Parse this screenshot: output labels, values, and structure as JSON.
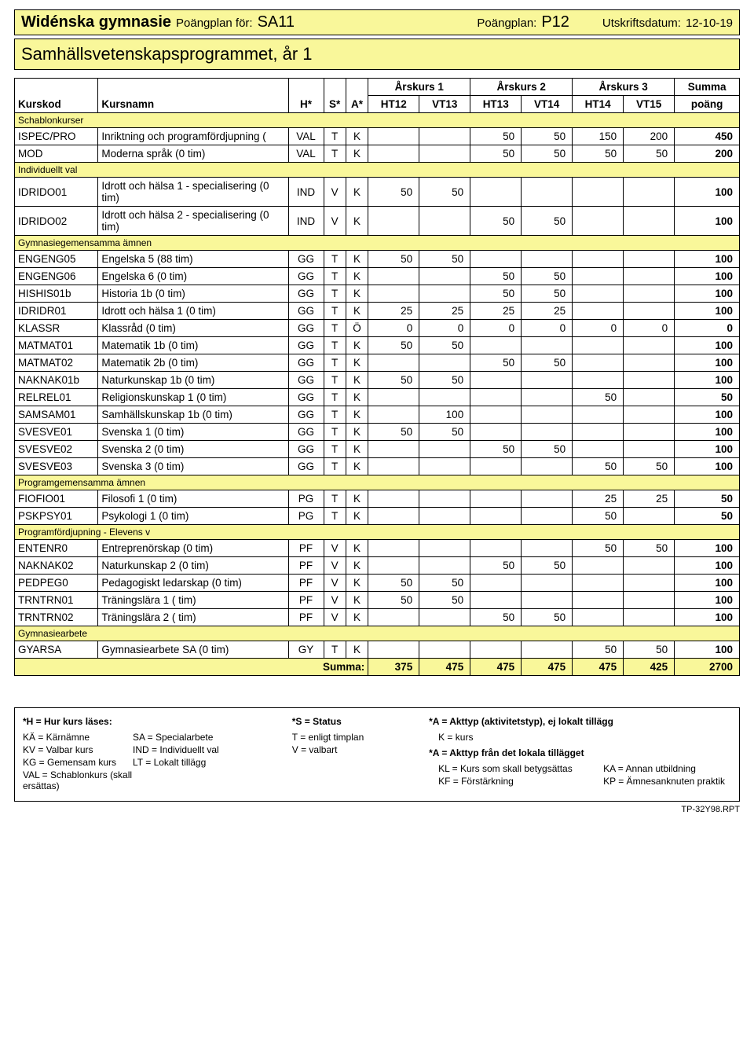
{
  "header": {
    "school": "Widénska gymnasie",
    "plan_for_label": "Poängplan för:",
    "plan_for_code": "SA11",
    "plan_label": "Poängplan:",
    "plan_code": "P12",
    "print_label": "Utskriftsdatum:",
    "print_date": "12-10-19",
    "program_title": "Samhällsvetenskapsprogrammet, år 1"
  },
  "columns": {
    "kurskod": "Kurskod",
    "kursnamn": "Kursnamn",
    "h": "H*",
    "s": "S*",
    "a": "A*",
    "arskurs1": "Årskurs 1",
    "arskurs2": "Årskurs 2",
    "arskurs3": "Årskurs 3",
    "ht12": "HT12",
    "vt13": "VT13",
    "ht13": "HT13",
    "vt14": "VT14",
    "ht14": "HT14",
    "vt15": "VT15",
    "summa": "Summa",
    "poang": "poäng"
  },
  "sections": [
    {
      "title": "Schablonkurser",
      "rows": [
        {
          "code": "ISPEC/PRO",
          "name": "Inriktning och programfördjupning (",
          "h": "VAL",
          "s": "T",
          "a": "K",
          "v": [
            "",
            "",
            "50",
            "50",
            "150",
            "200"
          ],
          "sum": "450"
        },
        {
          "code": "MOD",
          "name": "Moderna språk (0 tim)",
          "h": "VAL",
          "s": "T",
          "a": "K",
          "v": [
            "",
            "",
            "50",
            "50",
            "50",
            "50"
          ],
          "sum": "200"
        }
      ]
    },
    {
      "title": "Individuellt val",
      "rows": [
        {
          "code": "IDRIDO01",
          "name": "Idrott och hälsa 1 - specialisering (0 tim)",
          "small": true,
          "h": "IND",
          "s": "V",
          "a": "K",
          "v": [
            "50",
            "50",
            "",
            "",
            "",
            ""
          ],
          "sum": "100"
        },
        {
          "code": "IDRIDO02",
          "name": "Idrott och hälsa 2 - specialisering (0 tim)",
          "small": true,
          "h": "IND",
          "s": "V",
          "a": "K",
          "v": [
            "",
            "",
            "50",
            "50",
            "",
            ""
          ],
          "sum": "100"
        }
      ]
    },
    {
      "title": "Gymnasiegemensamma ämnen",
      "rows": [
        {
          "code": "ENGENG05",
          "name": "Engelska 5 (88 tim)",
          "h": "GG",
          "s": "T",
          "a": "K",
          "v": [
            "50",
            "50",
            "",
            "",
            "",
            ""
          ],
          "sum": "100"
        },
        {
          "code": "ENGENG06",
          "name": "Engelska 6 (0 tim)",
          "h": "GG",
          "s": "T",
          "a": "K",
          "v": [
            "",
            "",
            "50",
            "50",
            "",
            ""
          ],
          "sum": "100"
        },
        {
          "code": "HISHIS01b",
          "name": "Historia 1b (0 tim)",
          "h": "GG",
          "s": "T",
          "a": "K",
          "v": [
            "",
            "",
            "50",
            "50",
            "",
            ""
          ],
          "sum": "100"
        },
        {
          "code": "IDRIDR01",
          "name": "Idrott och hälsa 1 (0 tim)",
          "h": "GG",
          "s": "T",
          "a": "K",
          "v": [
            "25",
            "25",
            "25",
            "25",
            "",
            ""
          ],
          "sum": "100"
        },
        {
          "code": "KLASSR",
          "name": "Klassråd (0 tim)",
          "h": "GG",
          "s": "T",
          "a": "Ö",
          "v": [
            "0",
            "0",
            "0",
            "0",
            "0",
            "0"
          ],
          "sum": "0"
        },
        {
          "code": "MATMAT01",
          "name": "Matematik 1b (0 tim)",
          "h": "GG",
          "s": "T",
          "a": "K",
          "v": [
            "50",
            "50",
            "",
            "",
            "",
            ""
          ],
          "sum": "100"
        },
        {
          "code": "MATMAT02",
          "name": "Matematik 2b (0 tim)",
          "h": "GG",
          "s": "T",
          "a": "K",
          "v": [
            "",
            "",
            "50",
            "50",
            "",
            ""
          ],
          "sum": "100"
        },
        {
          "code": "NAKNAK01b",
          "name": "Naturkunskap 1b (0 tim)",
          "h": "GG",
          "s": "T",
          "a": "K",
          "v": [
            "50",
            "50",
            "",
            "",
            "",
            ""
          ],
          "sum": "100"
        },
        {
          "code": "RELREL01",
          "name": "Religionskunskap 1 (0 tim)",
          "h": "GG",
          "s": "T",
          "a": "K",
          "v": [
            "",
            "",
            "",
            "",
            "50",
            ""
          ],
          "sum": "50"
        },
        {
          "code": "SAMSAM01",
          "name": "Samhällskunskap 1b (0 tim)",
          "h": "GG",
          "s": "T",
          "a": "K",
          "v": [
            "",
            "100",
            "",
            "",
            "",
            ""
          ],
          "sum": "100"
        },
        {
          "code": "SVESVE01",
          "name": "Svenska 1 (0 tim)",
          "h": "GG",
          "s": "T",
          "a": "K",
          "v": [
            "50",
            "50",
            "",
            "",
            "",
            ""
          ],
          "sum": "100"
        },
        {
          "code": "SVESVE02",
          "name": "Svenska 2 (0 tim)",
          "h": "GG",
          "s": "T",
          "a": "K",
          "v": [
            "",
            "",
            "50",
            "50",
            "",
            ""
          ],
          "sum": "100"
        },
        {
          "code": "SVESVE03",
          "name": "Svenska 3 (0 tim)",
          "h": "GG",
          "s": "T",
          "a": "K",
          "v": [
            "",
            "",
            "",
            "",
            "50",
            "50"
          ],
          "sum": "100"
        }
      ]
    },
    {
      "title": "Programgemensamma ämnen",
      "rows": [
        {
          "code": "FIOFIO01",
          "name": "Filosofi 1 (0 tim)",
          "h": "PG",
          "s": "T",
          "a": "K",
          "v": [
            "",
            "",
            "",
            "",
            "25",
            "25"
          ],
          "sum": "50"
        },
        {
          "code": "PSKPSY01",
          "name": "Psykologi 1 (0 tim)",
          "h": "PG",
          "s": "T",
          "a": "K",
          "v": [
            "",
            "",
            "",
            "",
            "50",
            ""
          ],
          "sum": "50"
        }
      ]
    },
    {
      "title": "Programfördjupning - Elevens v",
      "rows": [
        {
          "code": "ENTENR0",
          "name": "Entreprenörskap (0 tim)",
          "h": "PF",
          "s": "V",
          "a": "K",
          "v": [
            "",
            "",
            "",
            "",
            "50",
            "50"
          ],
          "sum": "100"
        },
        {
          "code": "NAKNAK02",
          "name": "Naturkunskap 2 (0 tim)",
          "h": "PF",
          "s": "V",
          "a": "K",
          "v": [
            "",
            "",
            "50",
            "50",
            "",
            ""
          ],
          "sum": "100"
        },
        {
          "code": "PEDPEG0",
          "name": "Pedagogiskt ledarskap (0 tim)",
          "h": "PF",
          "s": "V",
          "a": "K",
          "v": [
            "50",
            "50",
            "",
            "",
            "",
            ""
          ],
          "sum": "100"
        },
        {
          "code": "TRNTRN01",
          "name": "Träningslära 1 ( tim)",
          "h": "PF",
          "s": "V",
          "a": "K",
          "v": [
            "50",
            "50",
            "",
            "",
            "",
            ""
          ],
          "sum": "100"
        },
        {
          "code": "TRNTRN02",
          "name": "Träningslära 2 ( tim)",
          "h": "PF",
          "s": "V",
          "a": "K",
          "v": [
            "",
            "",
            "50",
            "50",
            "",
            ""
          ],
          "sum": "100"
        }
      ]
    },
    {
      "title": "Gymnasiearbete",
      "rows": [
        {
          "code": "GYARSA",
          "name": "Gymnasiearbete SA (0 tim)",
          "h": "GY",
          "s": "T",
          "a": "K",
          "v": [
            "",
            "",
            "",
            "",
            "50",
            "50"
          ],
          "sum": "100"
        }
      ]
    }
  ],
  "totals": {
    "label": "Summa:",
    "v": [
      "375",
      "475",
      "475",
      "475",
      "475",
      "425"
    ],
    "sum": "2700"
  },
  "legend": {
    "h_title": "*H = Hur kurs läses:",
    "h_items": [
      [
        "KÄ = Kärnämne",
        "SA = Specialarbete"
      ],
      [
        "KV = Valbar kurs",
        "IND = Individuellt val"
      ],
      [
        "KG = Gemensam kurs",
        "LT = Lokalt tillägg"
      ],
      [
        "VAL = Schablonkurs (skall ersättas)",
        ""
      ]
    ],
    "s_title": "*S = Status",
    "s_items": [
      "T = enligt timplan",
      "V = valbart"
    ],
    "a_title1": "*A = Akttyp (aktivitetstyp), ej lokalt tillägg",
    "a_k": "K = kurs",
    "a_title2": "*A = Akttyp från det lokala tillägget",
    "a_items": [
      [
        "KL = Kurs som skall betygsättas",
        "KA = Annan utbildning"
      ],
      [
        "KF = Förstärkning",
        "KP = Ämnesanknuten praktik"
      ]
    ],
    "rpt": "TP-32Y98.RPT"
  }
}
